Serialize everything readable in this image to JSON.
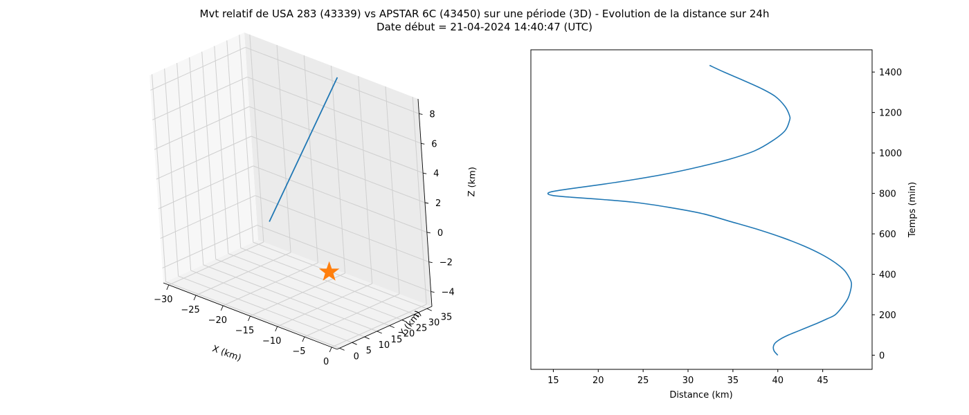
{
  "figure": {
    "title_line1": "Mvt relatif de USA 283 (43339) vs APSTAR 6C (43450) sur une période (3D) - Evolution de la distance sur 24h",
    "title_line2": "Date début = 21-04-2024 14:40:47 (UTC)"
  },
  "colors": {
    "series": "#1f77b4",
    "marker": "#ff7f0e",
    "grid": "#cfcfcf",
    "axis": "#000000"
  },
  "chart_data": [
    {
      "type": "line3d",
      "xlabel": "X (km)",
      "ylabel": "Y (km)",
      "zlabel": "Z (km)",
      "xticks": [
        "−30",
        "−25",
        "−20",
        "−15",
        "−10",
        "−5",
        "0"
      ],
      "yticks": [
        "0",
        "5",
        "10",
        "15",
        "20",
        "25",
        "30",
        "35"
      ],
      "zticks": [
        "−4",
        "−2",
        "0",
        "2",
        "4",
        "6",
        "8"
      ],
      "xlim": [
        -31,
        1
      ],
      "ylim": [
        -1,
        37
      ],
      "zlim": [
        -5,
        9
      ],
      "grid": true,
      "series": [
        {
          "points": [
            [
              -25.5,
              30.5,
              -2.5
            ],
            [
              -13.5,
              36.0,
              8.5
            ]
          ]
        }
      ],
      "markers": [
        {
          "shape": "star",
          "point": [
            0,
            0,
            0
          ]
        }
      ]
    },
    {
      "type": "line",
      "xlabel": "Distance (km)",
      "ylabel": "Temps (min)",
      "xticks": [
        15,
        20,
        25,
        30,
        35,
        40,
        45
      ],
      "yticks": [
        0,
        200,
        400,
        600,
        800,
        1000,
        1200,
        1400
      ],
      "xlim": [
        12.5,
        50.5
      ],
      "ylim": [
        -70,
        1510
      ],
      "y_axis_side": "right",
      "series": [
        {
          "points": [
            [
              40.0,
              0
            ],
            [
              39.6,
              20
            ],
            [
              39.5,
              40
            ],
            [
              39.7,
              60
            ],
            [
              40.3,
              80
            ],
            [
              41.2,
              100
            ],
            [
              42.3,
              120
            ],
            [
              43.4,
              140
            ],
            [
              44.5,
              160
            ],
            [
              45.5,
              180
            ],
            [
              46.4,
              200
            ],
            [
              47.2,
              240
            ],
            [
              47.8,
              280
            ],
            [
              48.1,
              320
            ],
            [
              48.2,
              355
            ],
            [
              48.0,
              380
            ],
            [
              47.4,
              420
            ],
            [
              46.3,
              460
            ],
            [
              44.8,
              500
            ],
            [
              42.9,
              540
            ],
            [
              40.6,
              580
            ],
            [
              37.9,
              620
            ],
            [
              34.8,
              660
            ],
            [
              31.6,
              700
            ],
            [
              28.0,
              730
            ],
            [
              24.2,
              755
            ],
            [
              20.4,
              770
            ],
            [
              17.0,
              781
            ],
            [
              14.9,
              790
            ],
            [
              14.4,
              800
            ],
            [
              15.0,
              810
            ],
            [
              17.2,
              825
            ],
            [
              20.5,
              845
            ],
            [
              24.2,
              870
            ],
            [
              28.0,
              900
            ],
            [
              31.6,
              935
            ],
            [
              34.7,
              970
            ],
            [
              37.4,
              1010
            ],
            [
              39.4,
              1060
            ],
            [
              40.8,
              1110
            ],
            [
              41.3,
              1160
            ],
            [
              41.3,
              1185
            ],
            [
              40.8,
              1230
            ],
            [
              39.7,
              1280
            ],
            [
              38.1,
              1320
            ],
            [
              36.1,
              1360
            ],
            [
              34.0,
              1400
            ],
            [
              32.4,
              1433
            ]
          ]
        }
      ]
    }
  ]
}
